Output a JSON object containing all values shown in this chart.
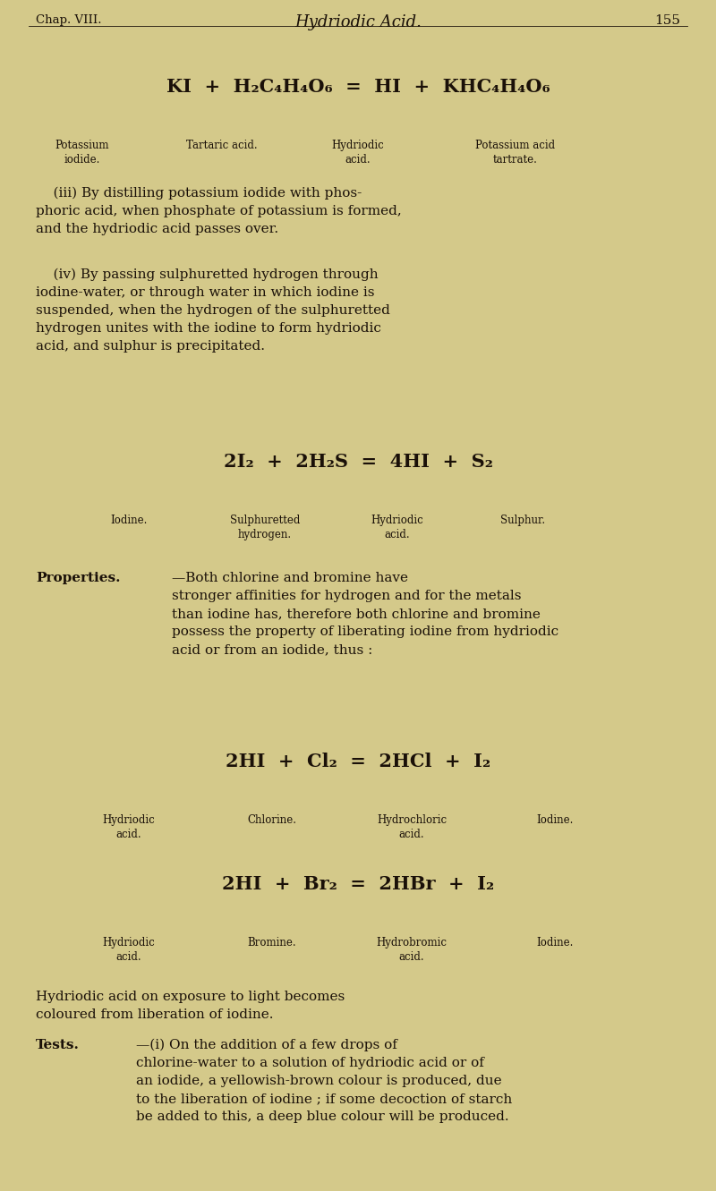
{
  "bg_color": "#d4c98a",
  "text_color": "#1a1008",
  "page_width": 8.0,
  "page_height": 13.31,
  "header_chap": "Chap. VIII.",
  "header_title": "Hydriodic Acid.",
  "header_page": "155",
  "eq1_main": "KI  +  H₂C₄H₄O₆  =  HI  +  KHC₄H₄O₆",
  "eq1_labels": [
    [
      0.115,
      "Potassium\niodide."
    ],
    [
      0.31,
      "Tartaric acid."
    ],
    [
      0.5,
      "Hydriodic\nacid."
    ],
    [
      0.72,
      "Potassium acid\ntartrate."
    ]
  ],
  "para_iii": "    (iii) By distilling potassium iodide with phos-\nphoric acid, when phosphate of potassium is formed,\nand the hydriodic acid passes over.",
  "para_iv": "    (iv) By passing sulphuretted hydrogen through\niodine-water, or through water in which iodine is\nsuspended, when the hydrogen of the sulphuretted\nhydrogen unites with the iodine to form hydriodic\nacid, and sulphur is precipitated.",
  "eq2_main": "2I₂  +  2H₂S  =  4HI  +  S₂",
  "eq2_labels": [
    [
      0.18,
      "Iodine."
    ],
    [
      0.37,
      "Sulphuretted\nhydrogen."
    ],
    [
      0.555,
      "Hydriodic\nacid."
    ],
    [
      0.73,
      "Sulphur."
    ]
  ],
  "prop_bold": "Properties.",
  "prop_rest": "—Both chlorine and bromine have\nstronger affinities for hydrogen and for the metals\nthan iodine has, therefore both chlorine and bromine\npossess the property of liberating iodine from hydriodic\nacid or from an iodide, thus :",
  "eq3_main": "2HI  +  Cl₂  =  2HCl  +  I₂",
  "eq3_labels": [
    [
      0.18,
      "Hydriodic\nacid."
    ],
    [
      0.38,
      "Chlorine."
    ],
    [
      0.575,
      "Hydrochloric\nacid."
    ],
    [
      0.775,
      "Iodine."
    ]
  ],
  "eq4_main": "2HI  +  Br₂  =  2HBr  +  I₂",
  "eq4_labels": [
    [
      0.18,
      "Hydriodic\nacid."
    ],
    [
      0.38,
      "Bromine."
    ],
    [
      0.575,
      "Hydrobromic\nacid."
    ],
    [
      0.775,
      "Iodine."
    ]
  ],
  "para_exp": "Hydriodic acid on exposure to light becomes\ncoloured from liberation of iodine.",
  "tests_bold": "Tests.",
  "tests_rest": "—(i) On the addition of a few drops of\nchlorine-water to a solution of hydriodic acid or of\nan iodide, a yellowish-brown colour is produced, due\nto the liberation of iodine ; if some decoction of starch\nbe added to this, a deep blue colour will be produced."
}
